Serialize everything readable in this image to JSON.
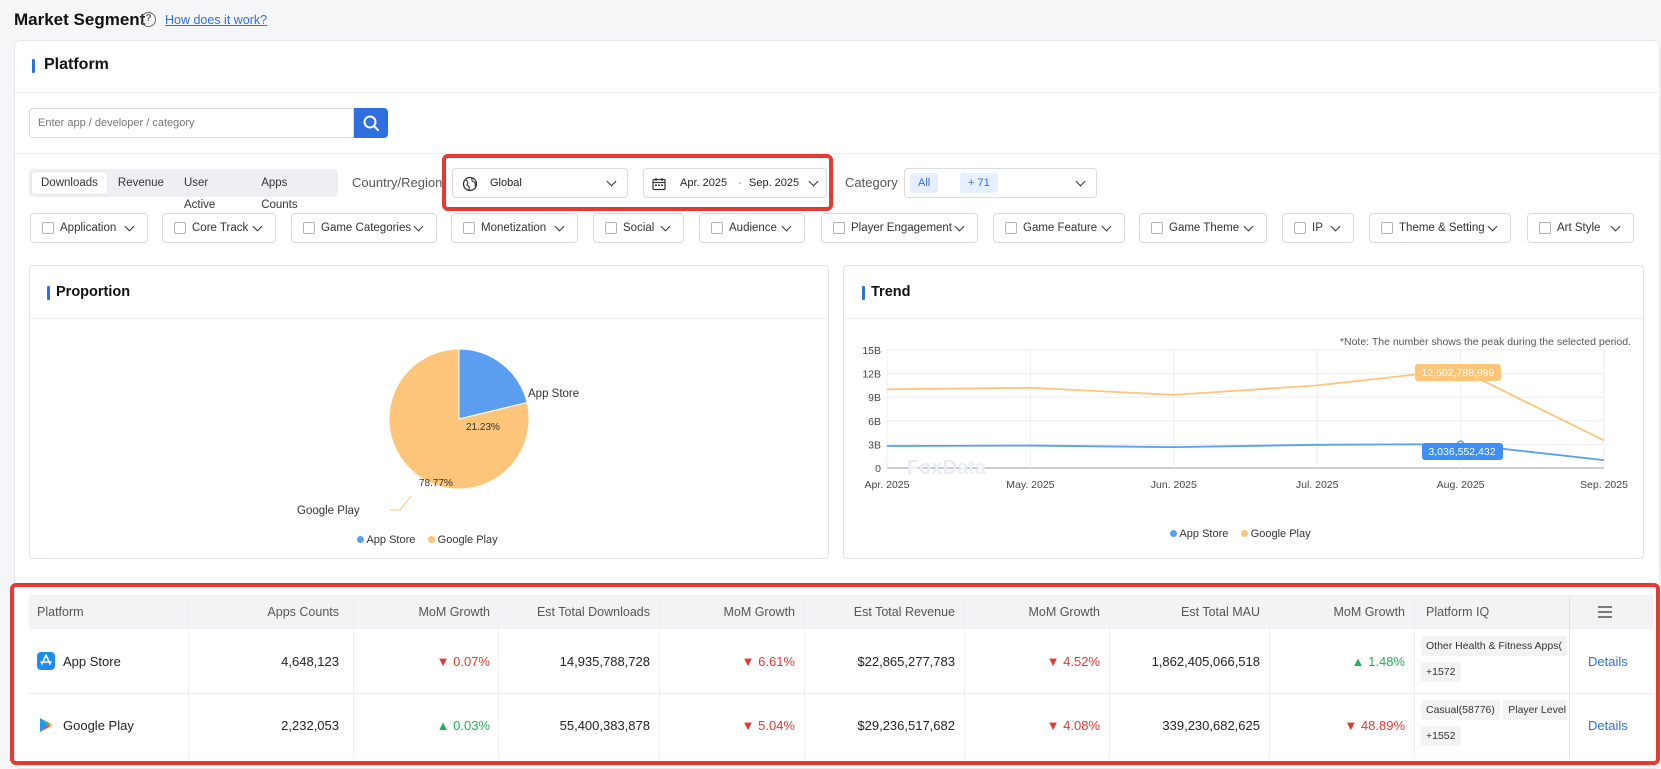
{
  "header": {
    "title": "Market Segment",
    "help_link": "How does it work?"
  },
  "platform_section": {
    "title": "Platform"
  },
  "search": {
    "placeholder": "Enter app / developer / category"
  },
  "metric_tabs": [
    "Downloads",
    "Revenue",
    "User Active",
    "Apps Counts"
  ],
  "country": {
    "label": "Country/Region",
    "value": "Global"
  },
  "date_range": {
    "start": "Apr. 2025",
    "sep": "-",
    "end": "Sep. 2025"
  },
  "category": {
    "label": "Category",
    "all": "All",
    "more": "+ 71"
  },
  "filters": [
    "Application",
    "Core Track",
    "Game Categories",
    "Monetization",
    "Social",
    "Audience",
    "Player Engagement",
    "Game Feature",
    "Game Theme",
    "IP",
    "Theme & Setting",
    "Art Style"
  ],
  "proportion": {
    "title": "Proportion",
    "legend": [
      "App Store",
      "Google Play"
    ],
    "colors": [
      "#5b9ef0",
      "#fcc57a"
    ]
  },
  "trend": {
    "title": "Trend",
    "note": "*Note: The number shows the peak during the selected period.",
    "legend": [
      "App Store",
      "Google Play"
    ],
    "peak_labels": {
      "google_play": "12,502,788,999",
      "app_store": "3,036,552,432"
    },
    "watermark": "FoxData"
  },
  "chart_data": [
    {
      "type": "pie",
      "categories": [
        "App Store",
        "Google Play"
      ],
      "values": [
        21.23,
        78.77
      ],
      "labels": [
        "21.23%",
        "78.77%"
      ]
    },
    {
      "type": "line",
      "x": [
        "Apr. 2025",
        "May. 2025",
        "Jun. 2025",
        "Jul. 2025",
        "Aug. 2025",
        "Sep. 2025"
      ],
      "yticks": [
        "0",
        "3B",
        "6B",
        "9B",
        "12B",
        "15B"
      ],
      "ylim": [
        0,
        15000000000
      ],
      "series": [
        {
          "name": "App Store",
          "color": "#5b9ef0",
          "values": [
            2800000000,
            2850000000,
            2650000000,
            2950000000,
            3036552432,
            1000000000
          ]
        },
        {
          "name": "Google Play",
          "color": "#fcc57a",
          "values": [
            10000000000,
            10200000000,
            9300000000,
            10500000000,
            12502788999,
            3500000000
          ]
        }
      ]
    }
  ],
  "table": {
    "headers": [
      "Platform",
      "Apps Counts",
      "MoM Growth",
      "Est Total Downloads",
      "MoM Growth",
      "Est Total Revenue",
      "MoM Growth",
      "Est Total MAU",
      "MoM Growth",
      "Platform IQ"
    ],
    "rows": [
      {
        "platform": "App Store",
        "apps_counts": "4,648,123",
        "mom1": "0.07%",
        "downloads": "14,935,788,728",
        "mom2": "6.61%",
        "revenue": "$22,865,277,783",
        "mom3": "4.52%",
        "mau": "1,862,405,066,518",
        "mom4": "1.48%",
        "iq_chip1": "Other Health & Fitness Apps(",
        "iq_chip2": "",
        "iq_more": "+1572",
        "details": "Details"
      },
      {
        "platform": "Google Play",
        "apps_counts": "2,232,053",
        "mom1": "0.03%",
        "downloads": "55,400,383,878",
        "mom2": "5.04%",
        "revenue": "$29,236,517,682",
        "mom3": "4.08%",
        "mau": "339,230,682,625",
        "mom4": "48.89%",
        "iq_chip1": "Casual(58776)",
        "iq_chip2": "Player Level",
        "iq_more": "+1552",
        "details": "Details"
      }
    ]
  }
}
